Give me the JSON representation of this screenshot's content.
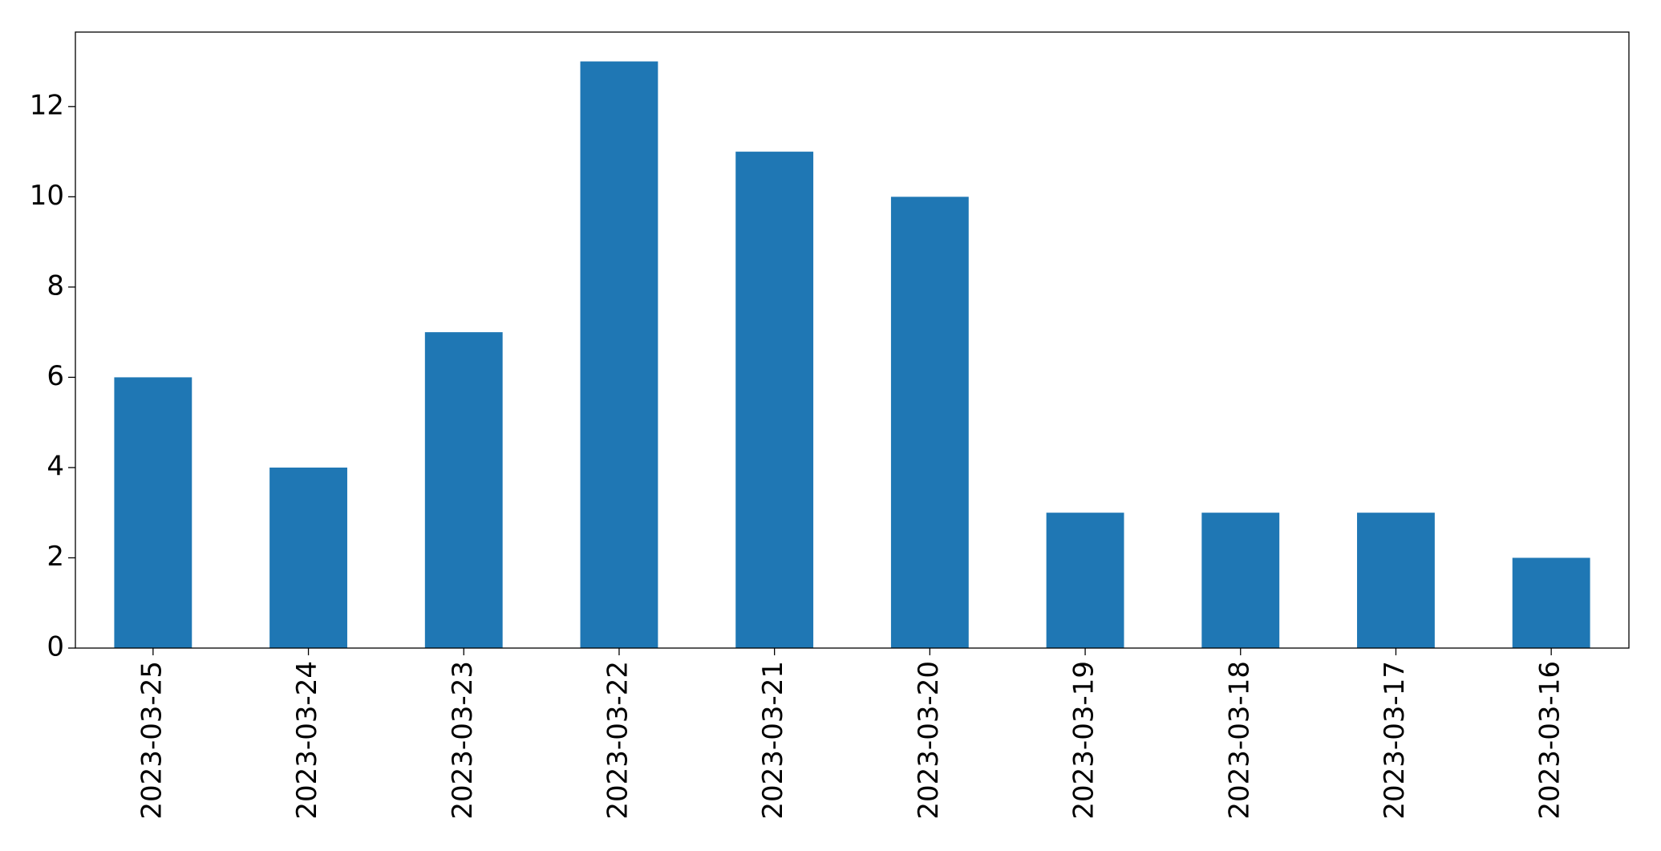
{
  "chart_data": {
    "type": "bar",
    "categories": [
      "2023-03-25",
      "2023-03-24",
      "2023-03-23",
      "2023-03-22",
      "2023-03-21",
      "2023-03-20",
      "2023-03-19",
      "2023-03-18",
      "2023-03-17",
      "2023-03-16"
    ],
    "values": [
      6,
      4,
      7,
      13,
      11,
      10,
      3,
      3,
      3,
      2
    ],
    "color": "#1f77b4",
    "ylim": [
      0,
      13.65
    ],
    "yticks": [
      0,
      2,
      4,
      6,
      8,
      10,
      12
    ],
    "grid": false
  }
}
